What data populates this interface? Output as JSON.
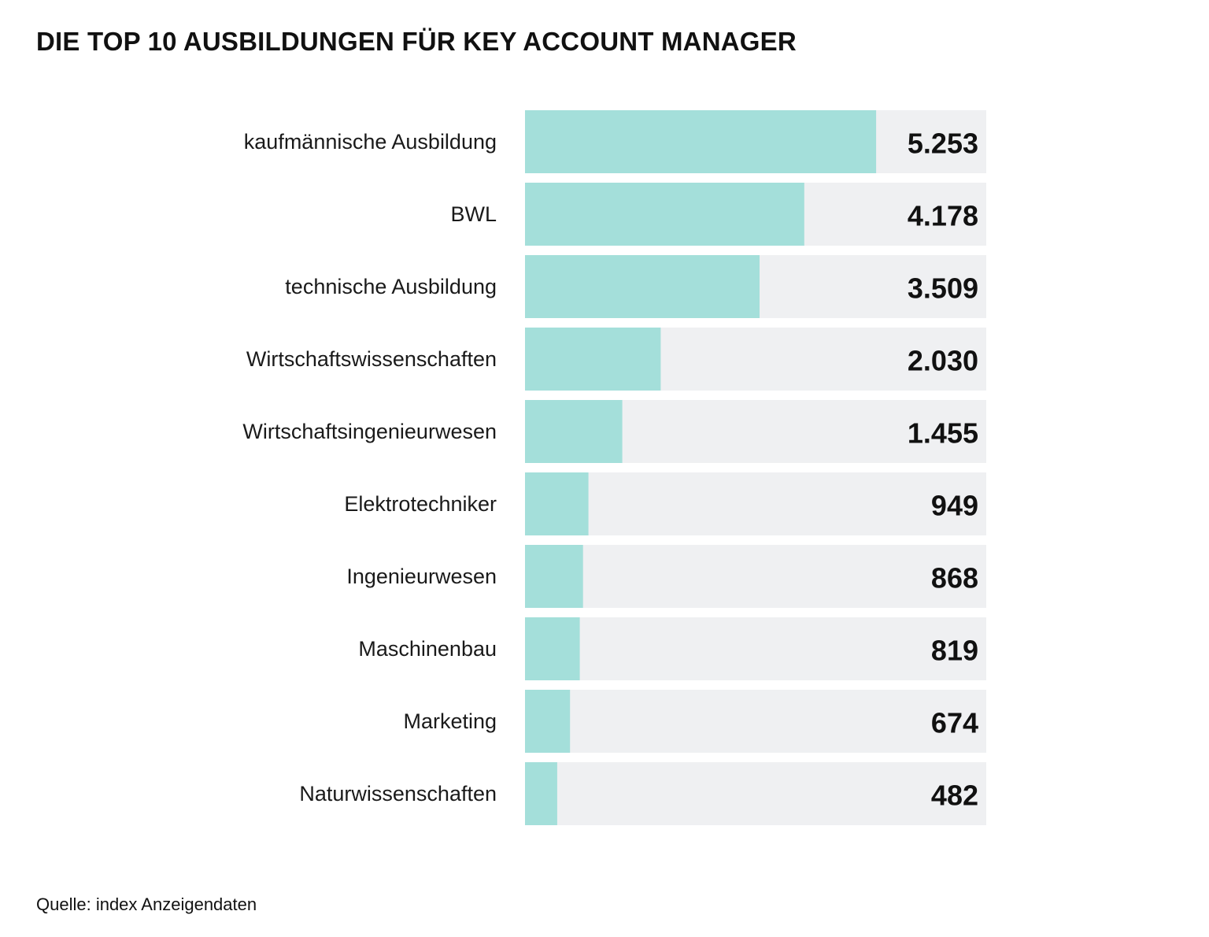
{
  "title": "DIE TOP 10 AUSBILDUNGEN FÜR KEY ACCOUNT MANAGER",
  "source": "Quelle: index Anzeigendaten",
  "colors": {
    "bar": "#a4dfda",
    "track": "#eff0f2",
    "text": "#111111"
  },
  "chart_data": {
    "type": "bar",
    "orientation": "horizontal",
    "title": "DIE TOP 10 AUSBILDUNGEN FÜR KEY ACCOUNT MANAGER",
    "categories": [
      "kaufmännische Ausbildung",
      "BWL",
      "technische Ausbildung",
      "Wirtschaftswissenschaften",
      "Wirtschaftsingenieurwesen",
      "Elektrotechniker",
      "Ingenieurwesen",
      "Maschinenbau",
      "Marketing",
      "Naturwissenschaften"
    ],
    "values": [
      5253,
      4178,
      3509,
      2030,
      1455,
      949,
      868,
      819,
      674,
      482
    ],
    "value_labels": [
      "5.253",
      "4.178",
      "3.509",
      "2.030",
      "1.455",
      "949",
      "868",
      "819",
      "674",
      "482"
    ],
    "xlim": [
      0,
      6900
    ],
    "grid": false,
    "legend": "none"
  }
}
